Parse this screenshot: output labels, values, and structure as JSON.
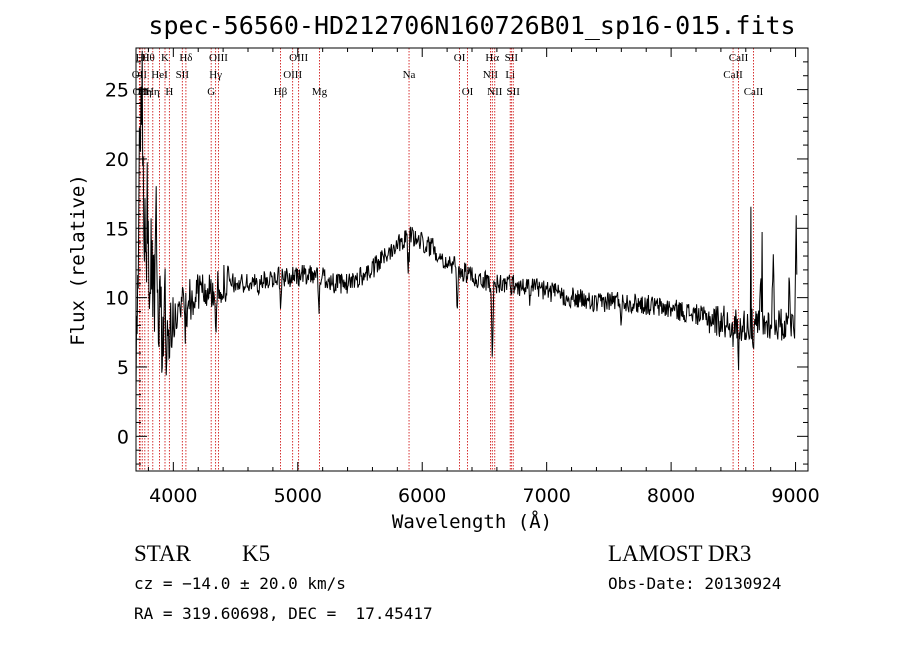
{
  "chart_data": {
    "type": "line",
    "title": "spec-56560-HD212706N160726B01_sp16-015.fits",
    "xlabel": "Wavelength (Å)",
    "ylabel": "Flux (relative)",
    "xlim": [
      3700,
      9100
    ],
    "ylim": [
      -2.5,
      28
    ],
    "xticks": [
      4000,
      5000,
      6000,
      7000,
      8000,
      9000
    ],
    "xtick_labels": [
      "4000",
      "5000",
      "6000",
      "7000",
      "8000",
      "9000"
    ],
    "yticks": [
      0,
      5,
      10,
      15,
      20,
      25
    ],
    "ytick_labels": [
      "0",
      "5",
      "10",
      "15",
      "20",
      "25"
    ],
    "series": [
      {
        "name": "flux",
        "color": "#000000",
        "anchors": [
          [
            3700,
            3
          ],
          [
            3720,
            13
          ],
          [
            3740,
            22
          ],
          [
            3760,
            17
          ],
          [
            3780,
            14
          ],
          [
            3800,
            12
          ],
          [
            3820,
            11
          ],
          [
            3850,
            10
          ],
          [
            3880,
            9
          ],
          [
            3900,
            8
          ],
          [
            3930,
            7
          ],
          [
            3960,
            6
          ],
          [
            4000,
            8
          ],
          [
            4050,
            9
          ],
          [
            4100,
            11
          ],
          [
            4150,
            9.5
          ],
          [
            4200,
            10.5
          ],
          [
            4300,
            10.5
          ],
          [
            4400,
            11
          ],
          [
            4500,
            11
          ],
          [
            4600,
            11
          ],
          [
            4700,
            11
          ],
          [
            4800,
            11.5
          ],
          [
            4900,
            11.5
          ],
          [
            5000,
            11.5
          ],
          [
            5100,
            11.8
          ],
          [
            5200,
            11.5
          ],
          [
            5300,
            11
          ],
          [
            5400,
            11
          ],
          [
            5500,
            11.5
          ],
          [
            5600,
            12
          ],
          [
            5700,
            13
          ],
          [
            5800,
            14
          ],
          [
            5900,
            14.5
          ],
          [
            6000,
            14
          ],
          [
            6100,
            13.5
          ],
          [
            6200,
            12.5
          ],
          [
            6300,
            12
          ],
          [
            6400,
            11.5
          ],
          [
            6500,
            11.2
          ],
          [
            6600,
            11
          ],
          [
            6700,
            11
          ],
          [
            6800,
            10.8
          ],
          [
            6900,
            10.8
          ],
          [
            7000,
            10.5
          ],
          [
            7100,
            10.2
          ],
          [
            7200,
            10
          ],
          [
            7300,
            9.8
          ],
          [
            7400,
            9.5
          ],
          [
            7500,
            9.8
          ],
          [
            7600,
            9.8
          ],
          [
            7700,
            9.6
          ],
          [
            7800,
            9.5
          ],
          [
            7900,
            9.3
          ],
          [
            8000,
            9.2
          ],
          [
            8100,
            9
          ],
          [
            8200,
            8.8
          ],
          [
            8300,
            8.5
          ],
          [
            8400,
            8.3
          ],
          [
            8500,
            8.2
          ],
          [
            8600,
            8
          ],
          [
            8700,
            8
          ],
          [
            8800,
            8.2
          ],
          [
            8900,
            8
          ],
          [
            9000,
            8
          ]
        ],
        "features": [
          [
            3820,
            -1.5
          ],
          [
            3890,
            -2
          ],
          [
            3933,
            -2.5
          ],
          [
            3968,
            -2
          ],
          [
            4101,
            5
          ],
          [
            4340,
            4.5
          ],
          [
            4862,
            2
          ],
          [
            5170,
            2.5
          ],
          [
            5890,
            3.5
          ],
          [
            6280,
            3
          ],
          [
            6563,
            6
          ],
          [
            6870,
            1.5
          ],
          [
            7600,
            1.5
          ],
          [
            8498,
            2
          ],
          [
            8542,
            2.5
          ],
          [
            8662,
            2
          ],
          [
            8720,
            -3
          ],
          [
            8820,
            -5
          ],
          [
            8950,
            -4.5
          ],
          [
            9005,
            -8
          ]
        ],
        "spikes": [
          [
            3725,
            4
          ],
          [
            3750,
            8
          ],
          [
            3790,
            7
          ],
          [
            3860,
            5
          ],
          [
            4100,
            4.5
          ],
          [
            5890,
            2.5
          ],
          [
            8640,
            8.5
          ],
          [
            8730,
            6
          ]
        ]
      }
    ],
    "line_markers": [
      {
        "wavelength": 3727,
        "label": "OII",
        "row": 2
      },
      {
        "wavelength": 3733,
        "label": "OII",
        "row": 3
      },
      {
        "wavelength": 3750,
        "label": "Hθ",
        "row": 1
      },
      {
        "wavelength": 3771,
        "label": "Hη",
        "row": 3
      },
      {
        "wavelength": 3798,
        "label": "Hθ",
        "row": 1
      },
      {
        "wavelength": 3835,
        "label": "Hη",
        "row": 3
      },
      {
        "wavelength": 3889,
        "label": "HeI",
        "row": 2
      },
      {
        "wavelength": 3933,
        "label": "K",
        "row": 1
      },
      {
        "wavelength": 3968,
        "label": "H",
        "row": 3
      },
      {
        "wavelength": 4072,
        "label": "SII",
        "row": 2
      },
      {
        "wavelength": 4101,
        "label": "Hδ",
        "row": 1
      },
      {
        "wavelength": 4304,
        "label": "G",
        "row": 3
      },
      {
        "wavelength": 4340,
        "label": "Hγ",
        "row": 2
      },
      {
        "wavelength": 4363,
        "label": "OIII",
        "row": 1
      },
      {
        "wavelength": 4861,
        "label": "Hβ",
        "row": 3
      },
      {
        "wavelength": 4959,
        "label": "OIII",
        "row": 2
      },
      {
        "wavelength": 5007,
        "label": "OIII",
        "row": 1
      },
      {
        "wavelength": 5175,
        "label": "Mg",
        "row": 3
      },
      {
        "wavelength": 5894,
        "label": "Na",
        "row": 2
      },
      {
        "wavelength": 6300,
        "label": "OI",
        "row": 1
      },
      {
        "wavelength": 6364,
        "label": "OI",
        "row": 3
      },
      {
        "wavelength": 6548,
        "label": "NII",
        "row": 2
      },
      {
        "wavelength": 6563,
        "label": "Hα",
        "row": 1
      },
      {
        "wavelength": 6583,
        "label": "NII",
        "row": 3
      },
      {
        "wavelength": 6707,
        "label": "Li",
        "row": 2
      },
      {
        "wavelength": 6716,
        "label": "SII",
        "row": 1
      },
      {
        "wavelength": 6731,
        "label": "SII",
        "row": 3
      },
      {
        "wavelength": 8498,
        "label": "CaII",
        "row": 2
      },
      {
        "wavelength": 8542,
        "label": "CaII",
        "row": 1
      },
      {
        "wavelength": 8662,
        "label": "CaII",
        "row": 3
      }
    ],
    "marker_color": "#cc0000"
  },
  "info": {
    "object_class": "STAR",
    "subclass": "K5",
    "survey": "LAMOST DR3",
    "redshift": "cz = −14.0 ± 20.0 km/s",
    "obs_date": "Obs-Date: 20130924",
    "coords": "RA = 319.60698, DEC =  17.45417"
  }
}
